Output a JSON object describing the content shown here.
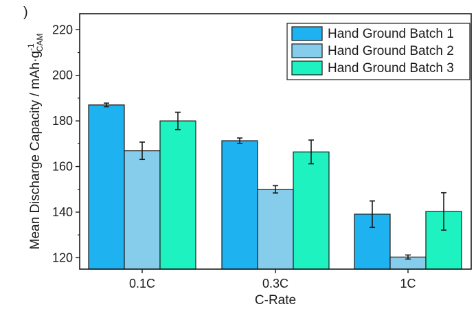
{
  "panel_label": ")",
  "chart_data": {
    "type": "bar",
    "xlabel": "C-Rate",
    "ylabel_main": "Mean Discharge Capacity / mAh·g",
    "ylabel_sup": "-1",
    "ylabel_sub": "CAM",
    "categories": [
      "0.1C",
      "0.3C",
      "1C"
    ],
    "ylim": [
      115,
      227
    ],
    "yticks": [
      120,
      140,
      160,
      180,
      200,
      220
    ],
    "grid": false,
    "legend_position": "top-right",
    "series": [
      {
        "name": "Hand Ground Batch 1",
        "color": "#1fb2f0",
        "values": [
          187.0,
          171.3,
          139.1
        ],
        "errors": [
          0.8,
          1.2,
          5.8
        ]
      },
      {
        "name": "Hand Ground Batch 2",
        "color": "#86cdec",
        "values": [
          166.9,
          150.0,
          120.3
        ],
        "errors": [
          3.8,
          1.6,
          0.9
        ]
      },
      {
        "name": "Hand Ground Batch 3",
        "color": "#1ef2c0",
        "values": [
          180.0,
          166.4,
          140.3
        ],
        "errors": [
          3.8,
          5.2,
          8.2
        ]
      }
    ]
  }
}
